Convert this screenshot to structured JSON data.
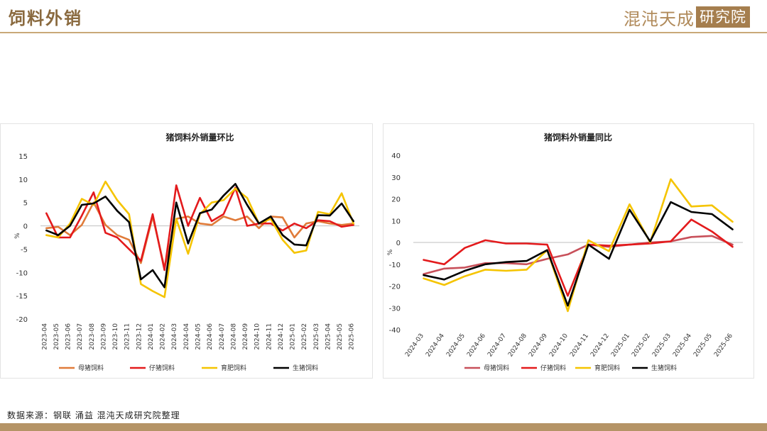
{
  "header": {
    "title": "饲料外销",
    "brand_name": "混沌天成",
    "brand_box": "研究院"
  },
  "source": "数据来源：钢联 涌益 混沌天成研究院整理",
  "colors": {
    "accent": "#c9a978",
    "series": [
      "#e07b39",
      "#e31a1c",
      "#f5c400",
      "#000000"
    ],
    "series_right": [
      "#c8505a",
      "#e31a1c",
      "#f5c400",
      "#000000"
    ]
  },
  "chart_data": [
    {
      "type": "line",
      "title": "猪饲料外销量环比",
      "ylabel": "%",
      "ylim": [
        -20,
        15
      ],
      "yticks": [
        15,
        10,
        5,
        0,
        -5,
        -10,
        -15,
        -20
      ],
      "legend_position": "bottom",
      "categories": [
        "2023-04",
        "2023-05",
        "2023-06",
        "2023-07",
        "2023-08",
        "2023-09",
        "2023-10",
        "2023-11",
        "2023-12",
        "2024-01",
        "2024-02",
        "2024-03",
        "2024-04",
        "2024-05",
        "2024-06",
        "2024-07",
        "2024-08",
        "2024-09",
        "2024-10",
        "2024-11",
        "2024-12",
        "2025-01",
        "2025-02",
        "2025-03",
        "2025-04",
        "2025-05",
        "2025-06"
      ],
      "series": [
        {
          "name": "母猪饲料",
          "values": [
            -0.5,
            -0.2,
            -2,
            0.2,
            5,
            0.2,
            -2,
            -3,
            -8,
            2,
            -9,
            1.5,
            2,
            0.5,
            0.2,
            2,
            1.2,
            2,
            -0.5,
            2,
            1.8,
            -2.5,
            0.5,
            1,
            0.5,
            0.2,
            0.5
          ]
        },
        {
          "name": "仔猪饲料",
          "values": [
            2.7,
            -2.5,
            -2.5,
            2.2,
            7.2,
            -1.5,
            -2.5,
            -5,
            -7.5,
            2.5,
            -9.5,
            8.7,
            0,
            6,
            1,
            2.5,
            8.2,
            0,
            0.5,
            0.5,
            -1,
            0.5,
            -0.5,
            1.2,
            1,
            -0.2,
            0.2
          ]
        },
        {
          "name": "育肥饲料",
          "values": [
            -2,
            -2.5,
            0.5,
            5.8,
            4.5,
            9.5,
            5.5,
            2.5,
            -12.5,
            -14,
            -15.3,
            1.5,
            -6,
            2.5,
            5,
            5.5,
            8,
            6,
            0.5,
            1.5,
            -3,
            -5.8,
            -5.3,
            3,
            2.5,
            7,
            0.5
          ]
        },
        {
          "name": "生猪饲料",
          "values": [
            -1,
            -2,
            0,
            4.5,
            4.8,
            6.3,
            3.2,
            0.8,
            -11.5,
            -9.5,
            -13.2,
            5,
            -3.8,
            2.7,
            3.5,
            6.5,
            9,
            4.5,
            0.5,
            2,
            -2,
            -4,
            -4.2,
            2.3,
            2.2,
            4.8,
            1
          ]
        }
      ]
    },
    {
      "type": "line",
      "title": "猪饲料外销量同比",
      "ylabel": "%",
      "ylim": [
        -40,
        40
      ],
      "yticks": [
        40,
        30,
        20,
        10,
        0,
        -10,
        -20,
        -30,
        -40
      ],
      "legend_position": "bottom",
      "categories": [
        "2024-03",
        "2024-04",
        "2024-05",
        "2024-06",
        "2024-07",
        "2024-08",
        "2024-09",
        "2024-10",
        "2024-11",
        "2024-12",
        "2025-01",
        "2025-02",
        "2025-03",
        "2025-04",
        "2025-05",
        "2025-06"
      ],
      "series": [
        {
          "name": "母猪饲料",
          "values": [
            -14.5,
            -12,
            -11.5,
            -9.5,
            -9.5,
            -10,
            -7.5,
            -5.5,
            -1,
            -2,
            -1,
            0,
            0.5,
            2.5,
            3,
            -1
          ]
        },
        {
          "name": "仔猪饲料",
          "values": [
            -8,
            -10,
            -2.5,
            1,
            -0.5,
            -0.5,
            -1,
            -24.5,
            -1,
            -1.5,
            -1,
            -0.5,
            0.5,
            10.5,
            5,
            -2
          ]
        },
        {
          "name": "育肥饲料",
          "values": [
            -16.5,
            -19.5,
            -15.5,
            -12.5,
            -13,
            -12.5,
            -3.5,
            -31.5,
            1,
            -4,
            17.5,
            0,
            29,
            16.5,
            17,
            9.5
          ]
        },
        {
          "name": "生猪饲料",
          "values": [
            -15,
            -17,
            -13,
            -10,
            -9,
            -8.5,
            -3.5,
            -29,
            -1,
            -7.5,
            15,
            0.5,
            18.5,
            14,
            13,
            6
          ]
        }
      ]
    }
  ]
}
